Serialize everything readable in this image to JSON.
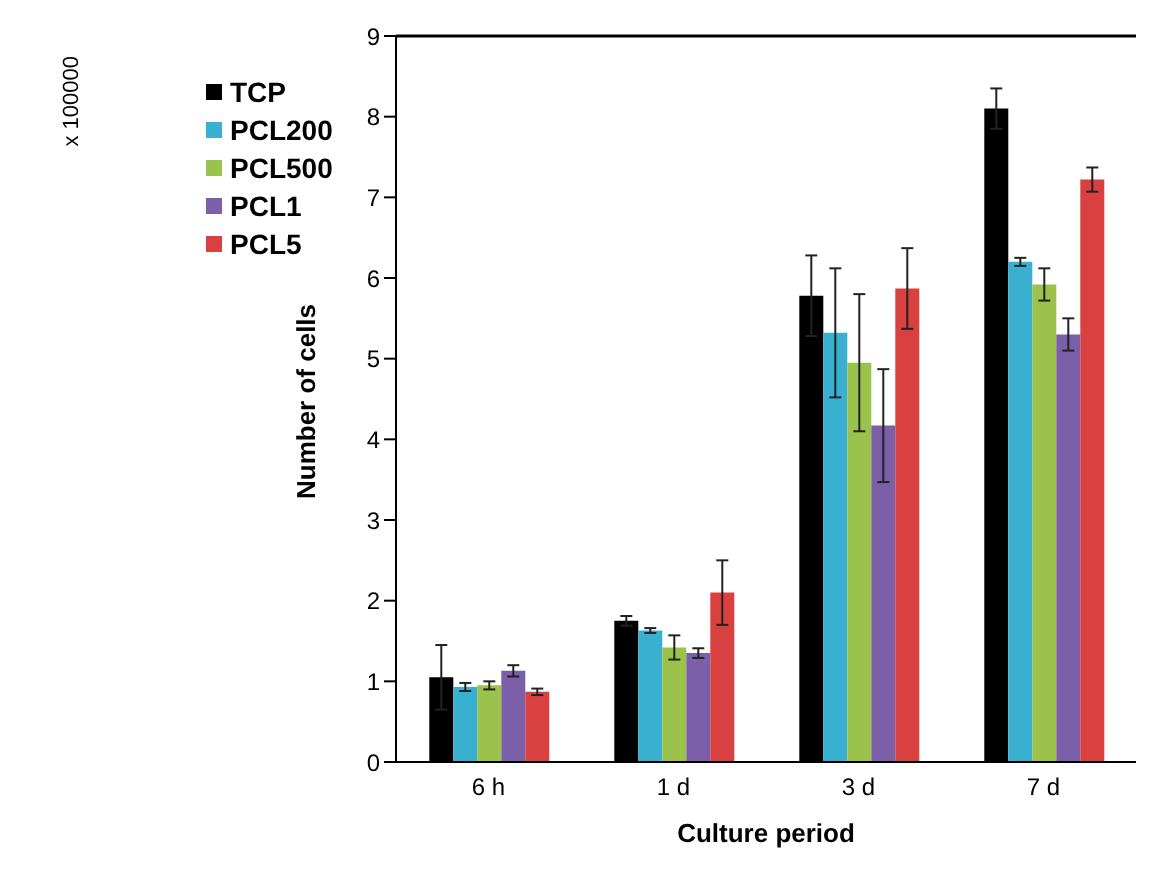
{
  "chart_data": {
    "type": "bar",
    "xlabel": "Culture period",
    "ylabel": "Number of cells",
    "annotations": [
      "x 100000"
    ],
    "categories": [
      "6 h",
      "1 d",
      "3 d",
      "7 d"
    ],
    "series": [
      {
        "name": "TCP",
        "color": "#000000",
        "values": [
          1.05,
          1.75,
          5.78,
          8.1
        ],
        "errors": [
          0.4,
          0.06,
          0.5,
          0.25
        ]
      },
      {
        "name": "PCL200",
        "color": "#3ab0d0",
        "values": [
          0.93,
          1.63,
          5.32,
          6.2
        ],
        "errors": [
          0.05,
          0.03,
          0.8,
          0.05
        ]
      },
      {
        "name": "PCL500",
        "color": "#9bc24a",
        "values": [
          0.95,
          1.42,
          4.95,
          5.92
        ],
        "errors": [
          0.05,
          0.15,
          0.85,
          0.2
        ]
      },
      {
        "name": "PCL1",
        "color": "#7b5fa8",
        "values": [
          1.13,
          1.35,
          4.17,
          5.3
        ],
        "errors": [
          0.07,
          0.06,
          0.7,
          0.2
        ]
      },
      {
        "name": "PCL5",
        "color": "#d8413f",
        "values": [
          0.87,
          2.1,
          5.87,
          7.22
        ],
        "errors": [
          0.04,
          0.4,
          0.5,
          0.15
        ]
      }
    ],
    "ylim": [
      0,
      9
    ],
    "yticks": [
      0,
      1,
      2,
      3,
      4,
      5,
      6,
      7,
      8,
      9
    ],
    "grid": false,
    "legend": "top left"
  }
}
